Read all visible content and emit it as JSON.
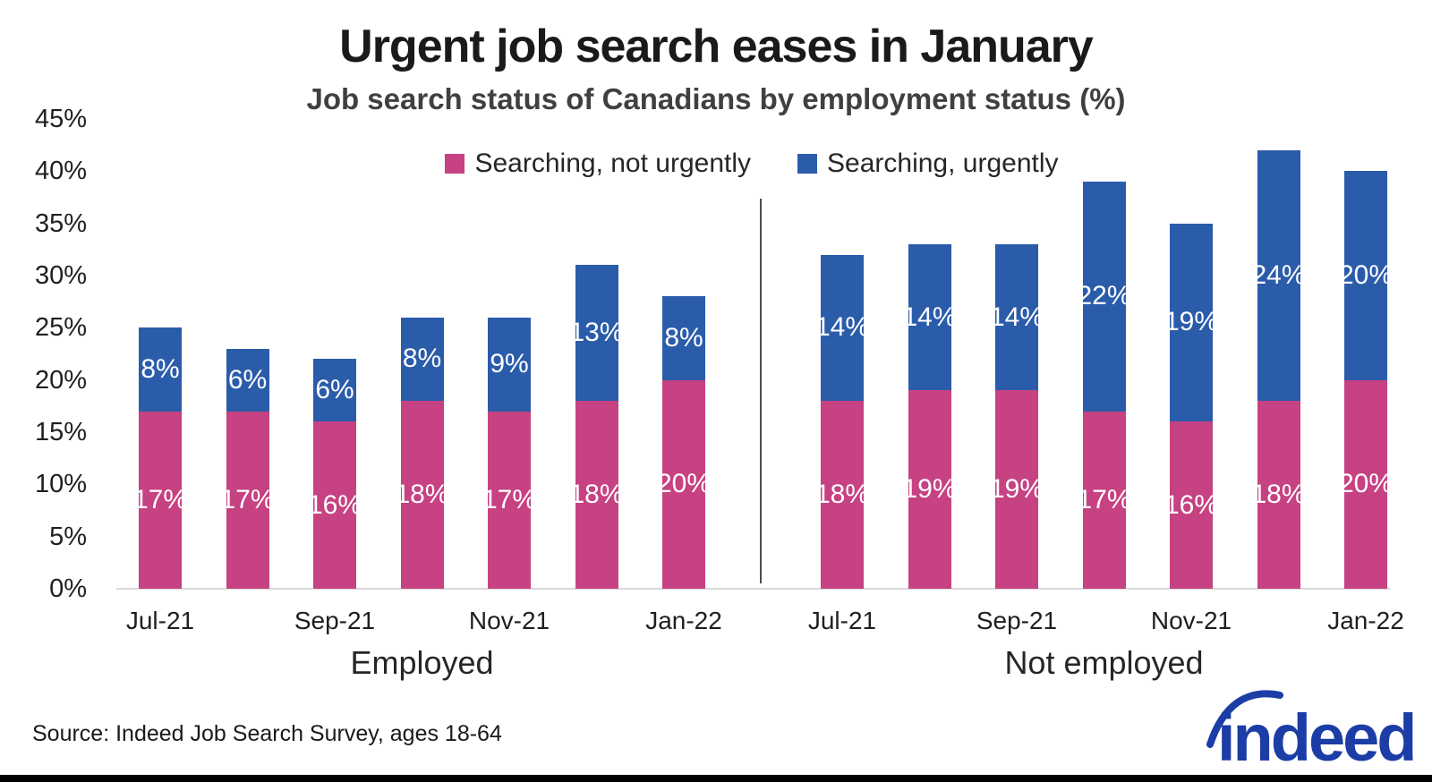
{
  "title": "Urgent job search eases in January",
  "subtitle": "Job search status of Canadians by employment status (%)",
  "source": "Source: Indeed Job Search Survey, ages 18-64",
  "logo_text": "indeed",
  "colors": {
    "not_urgently_pink": "#c64282",
    "urgently_blue": "#2b5caa",
    "logo_blue": "#1c3da6",
    "baseline_gray": "#d9d9d9",
    "divider_gray": "#4d4d4d",
    "title_color": "#1a1a1a",
    "subtitle_color": "#404040"
  },
  "legend": [
    {
      "label": "Searching, not urgently",
      "color": "#c64282"
    },
    {
      "label": "Searching, urgently",
      "color": "#2b5caa"
    }
  ],
  "chart_data": {
    "type": "bar",
    "stacked": true,
    "title": "Urgent job search eases in January",
    "subtitle": "Job search status of Canadians by employment status (%)",
    "ylim": [
      0,
      45
    ],
    "ytick_labels": [
      "0%",
      "5%",
      "10%",
      "15%",
      "20%",
      "25%",
      "30%",
      "35%",
      "40%",
      "45%"
    ],
    "grid": false,
    "legend_position": "top-center",
    "groups": [
      {
        "label": "Employed",
        "n_bars": 7,
        "tick_labels": [
          "Jul-21",
          "Sep-21",
          "Nov-21",
          "Jan-22"
        ],
        "tick_bar_indexes": [
          0,
          2,
          4,
          6
        ],
        "series": [
          {
            "name": "Searching, not urgently",
            "values": [
              17,
              17,
              16,
              18,
              17,
              18,
              20
            ],
            "labels": [
              "17%",
              "17%",
              "16%",
              "18%",
              "17%",
              "18%",
              "20%"
            ]
          },
          {
            "name": "Searching, urgently",
            "values": [
              8,
              6,
              6,
              8,
              9,
              13,
              8
            ],
            "labels": [
              "8%",
              "6%",
              "6%",
              "8%",
              "9%",
              "13%",
              "8%"
            ]
          }
        ]
      },
      {
        "label": "Not employed",
        "n_bars": 7,
        "tick_labels": [
          "Jul-21",
          "Sep-21",
          "Nov-21",
          "Jan-22"
        ],
        "tick_bar_indexes": [
          0,
          2,
          4,
          6
        ],
        "series": [
          {
            "name": "Searching, not urgently",
            "values": [
              18,
              19,
              19,
              17,
              16,
              18,
              20
            ],
            "labels": [
              "18%",
              "19%",
              "19%",
              "17%",
              "16%",
              "18%",
              "20%"
            ]
          },
          {
            "name": "Searching, urgently",
            "values": [
              14,
              14,
              14,
              22,
              19,
              24,
              20
            ],
            "labels": [
              "14%",
              "14%",
              "14%",
              "22%",
              "19%",
              "24%",
              "20%"
            ]
          }
        ]
      }
    ]
  }
}
